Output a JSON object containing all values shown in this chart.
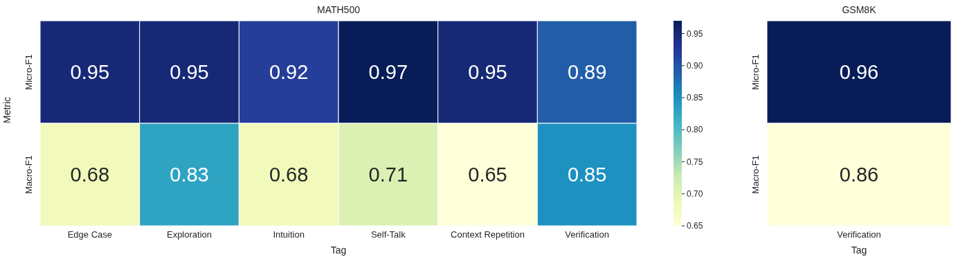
{
  "chart_data": [
    {
      "type": "heatmap",
      "title": "MATH500",
      "xlabel": "Tag",
      "ylabel": "Metric",
      "categories": [
        "Edge Case",
        "Exploration",
        "Intuition",
        "Self-Talk",
        "Context Repetition",
        "Verification"
      ],
      "y_categories": [
        "Micro-F1",
        "Macro-F1"
      ],
      "cells": [
        [
          0.95,
          0.95,
          0.92,
          0.97,
          0.95,
          0.89
        ],
        [
          0.68,
          0.83,
          0.68,
          0.71,
          0.65,
          0.85
        ]
      ],
      "clim": [
        0.65,
        0.97
      ],
      "cticks": [
        0.65,
        {
          "value": 0.7,
          "label": "0.70"
        },
        0.75,
        {
          "value": 0.8,
          "label": "0.80"
        },
        0.85,
        {
          "value": 0.9,
          "label": "0.90"
        },
        0.95
      ],
      "data_labels": true
    },
    {
      "type": "heatmap",
      "title": "GSM8K",
      "xlabel": "Tag",
      "categories": [
        "Verification"
      ],
      "y_categories": [
        "Micro-F1",
        "Macro-F1"
      ],
      "cells": [
        [
          0.96
        ],
        [
          0.86
        ]
      ],
      "data_labels": true
    }
  ]
}
